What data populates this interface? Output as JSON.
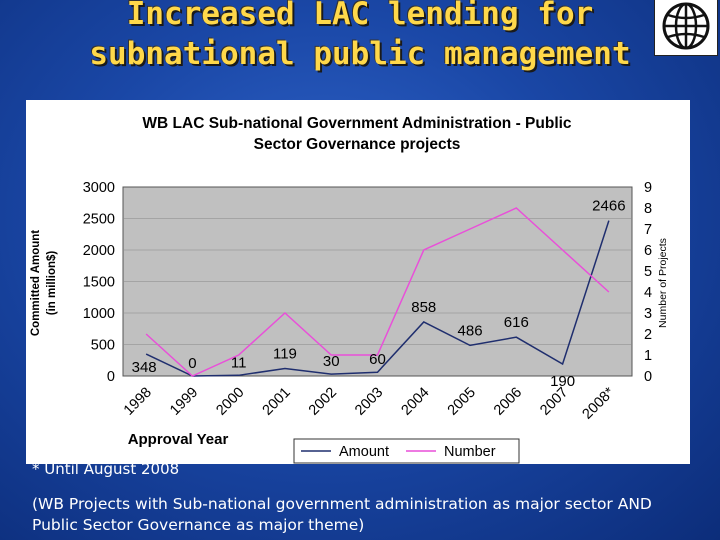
{
  "slide": {
    "title_line1": "Increased LAC lending for",
    "title_line2": "subnational public management",
    "footnote": "* Until August 2008",
    "note": "(WB Projects with Sub-national government administration as major sector AND Public Sector Governance as major theme)"
  },
  "logo": {
    "icon": "world-bank-globe-icon"
  },
  "colors": {
    "amount": "#1f2e6e",
    "number": "#e94fd9",
    "plot_bg": "#c0c0c0",
    "title": "#ffd84a"
  },
  "chart_data": {
    "type": "line",
    "title_line1": "WB LAC Sub-national Government Administration - Public",
    "title_line2": "Sector Governance projects",
    "categories": [
      "1998",
      "1999",
      "2000",
      "2001",
      "2002",
      "2003",
      "2004",
      "2005",
      "2006",
      "2007",
      "2008*"
    ],
    "xlabel": "Approval Year",
    "ylabel_line1": "Committed Amount",
    "ylabel_line2": "(in million$)",
    "y2label": "Number of Projects",
    "ylim": [
      0,
      3000
    ],
    "y_ticks": [
      "0",
      "500",
      "1000",
      "1500",
      "2000",
      "2500",
      "3000"
    ],
    "y2lim": [
      0,
      9
    ],
    "y2_ticks": [
      "0",
      "1",
      "2",
      "3",
      "4",
      "5",
      "6",
      "7",
      "8",
      "9"
    ],
    "series": [
      {
        "name": "Amount",
        "axis": "left",
        "values": [
          348,
          0,
          11,
          119,
          30,
          60,
          858,
          486,
          616,
          190,
          2466
        ],
        "labels": [
          "348",
          "0",
          "11",
          "119",
          "30",
          "60",
          "858",
          "486",
          "616",
          "190",
          "2466"
        ]
      },
      {
        "name": "Number",
        "axis": "right",
        "values": [
          2,
          0,
          1,
          3,
          1,
          1,
          6,
          7,
          8,
          6,
          4
        ]
      }
    ],
    "legend": [
      "Amount",
      "Number"
    ],
    "legend_position": "bottom-right"
  }
}
